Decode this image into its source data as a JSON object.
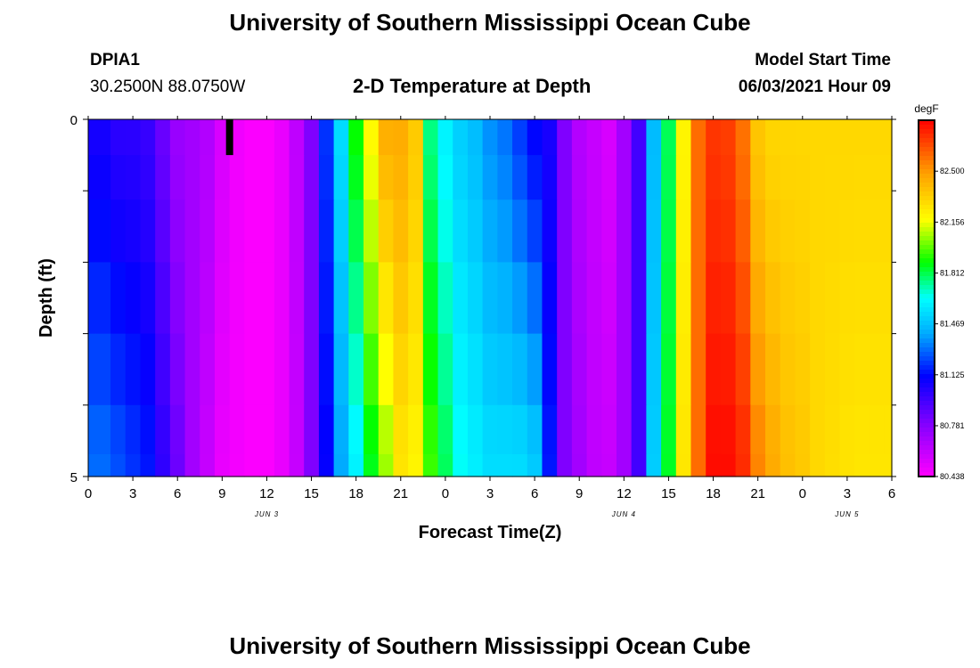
{
  "header": {
    "title": "University of Southern Mississippi Ocean Cube",
    "station_id": "DPIA1",
    "coordinates": "30.2500N  88.0750W",
    "plot_title": "2-D Temperature at Depth",
    "model_start_label": "Model Start Time",
    "model_start_value": "06/03/2021 Hour 09"
  },
  "footer": {
    "title": "University of Southern Mississippi Ocean Cube"
  },
  "chart_data": {
    "type": "heatmap",
    "title": "2-D Temperature at Depth",
    "xlabel": "Forecast Time(Z)",
    "ylabel": "Depth (ft)",
    "xlim": [
      0,
      54
    ],
    "ylim": [
      0,
      5
    ],
    "x_tick_labels": [
      "0",
      "3",
      "6",
      "9",
      "12",
      "15",
      "18",
      "21",
      "0",
      "3",
      "6",
      "9",
      "12",
      "15",
      "18",
      "21",
      "0",
      "3",
      "6"
    ],
    "y_tick_labels": [
      "0",
      "5"
    ],
    "day_labels": [
      {
        "text": "JUN 3",
        "hour": 12
      },
      {
        "text": "JUN 4",
        "hour": 36
      },
      {
        "text": "JUN 5",
        "hour": 51
      }
    ],
    "marker": {
      "hour": 9.5,
      "depth_from": 0,
      "depth_to": 0.5,
      "color": "#000000"
    },
    "colorbar": {
      "unit": "degF",
      "min": 80.438,
      "max": 82.844,
      "tick_labels": [
        "82.500",
        "82.156",
        "81.812",
        "81.469",
        "81.125",
        "80.781",
        "80.438"
      ]
    },
    "depth_levels": [
      0.25,
      0.75,
      1.5,
      2.5,
      3.5,
      4.5,
      4.875
    ],
    "time_hours": [
      0,
      1,
      2,
      3,
      4,
      5,
      6,
      7,
      8,
      9,
      10,
      11,
      12,
      13,
      14,
      15,
      16,
      17,
      18,
      19,
      20,
      21,
      22,
      23,
      24,
      25,
      26,
      27,
      28,
      29,
      30,
      31,
      32,
      33,
      34,
      35,
      36,
      37,
      38,
      39,
      40,
      41,
      42,
      43,
      44,
      45,
      46,
      47,
      48,
      49,
      50,
      51,
      52,
      53,
      54
    ],
    "surface_temperature_degF": [
      81.05,
      81.05,
      81.0,
      81.0,
      80.97,
      80.85,
      80.72,
      80.7,
      80.66,
      80.55,
      80.48,
      80.45,
      80.45,
      80.5,
      80.62,
      80.8,
      81.2,
      81.55,
      81.9,
      82.2,
      82.45,
      82.45,
      82.35,
      81.75,
      81.6,
      81.5,
      81.45,
      81.35,
      81.3,
      81.2,
      81.1,
      81.05,
      80.8,
      80.65,
      80.6,
      80.55,
      80.7,
      80.95,
      81.45,
      81.8,
      82.2,
      82.6,
      82.72,
      82.7,
      82.58,
      82.35,
      82.3,
      82.3,
      82.3,
      82.3,
      82.3,
      82.3,
      82.3,
      82.3,
      82.3
    ],
    "deep_temperature_degF": [
      81.3,
      81.3,
      81.25,
      81.2,
      81.15,
      81.0,
      80.85,
      80.7,
      80.6,
      80.5,
      80.47,
      80.45,
      80.45,
      80.5,
      80.6,
      80.8,
      81.1,
      81.4,
      81.6,
      81.85,
      82.05,
      82.25,
      82.2,
      81.95,
      81.8,
      81.65,
      81.6,
      81.55,
      81.55,
      81.55,
      81.5,
      81.15,
      80.8,
      80.7,
      80.62,
      80.6,
      80.7,
      80.95,
      81.5,
      81.85,
      82.25,
      82.6,
      82.82,
      82.82,
      82.75,
      82.55,
      82.45,
      82.38,
      82.35,
      82.3,
      82.28,
      82.26,
      82.25,
      82.25,
      82.25
    ]
  }
}
